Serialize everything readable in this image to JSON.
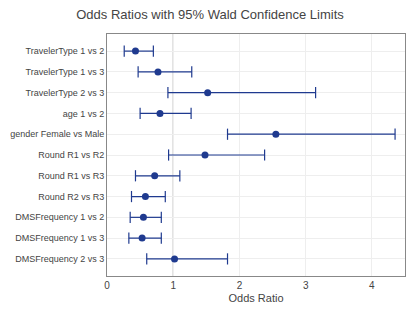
{
  "chart_data": {
    "type": "forest",
    "title": "Odds Ratios with 95% Wald Confidence Limits",
    "xlabel": "Odds Ratio",
    "categories": [
      "TravelerType 1 vs 2",
      "TravelerType 1 vs 3",
      "TravelerType 2 vs 3",
      "age 1 vs 2",
      "gender Female vs Male",
      "Round R1 vs R2",
      "Round R1 vs R3",
      "Round R2 vs R3",
      "DMSFrequency 1 vs 2",
      "DMSFrequency 1 vs 3",
      "DMSFrequency 2 vs 3"
    ],
    "values": [
      0.43,
      0.77,
      1.52,
      0.8,
      2.55,
      1.48,
      0.72,
      0.58,
      0.55,
      0.53,
      1.02
    ],
    "lower": [
      0.26,
      0.47,
      0.92,
      0.5,
      1.82,
      0.93,
      0.43,
      0.37,
      0.35,
      0.33,
      0.6
    ],
    "upper": [
      0.7,
      1.28,
      3.15,
      1.27,
      4.35,
      2.38,
      1.1,
      0.88,
      0.82,
      0.82,
      1.82
    ],
    "color": "#1F3A8F",
    "ref_line": 1.0,
    "xlim": [
      0,
      4.5
    ],
    "xticks": [
      0,
      1,
      2,
      3,
      4
    ],
    "grid": true
  }
}
